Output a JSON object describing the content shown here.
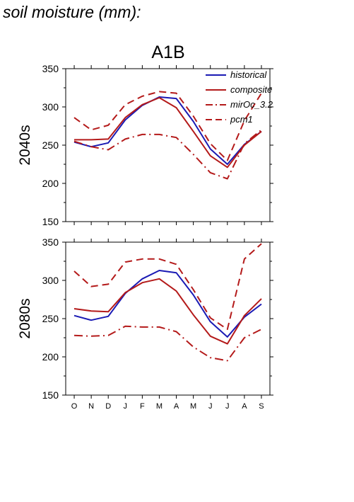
{
  "figure_title": "soil moisture (mm):",
  "chart_title": "A1B",
  "legend_entries": [
    "historical",
    "composite",
    "mirOc_3.2",
    "pcm1"
  ],
  "chart_data": [
    {
      "type": "line",
      "panel_label": "2040s",
      "categories": [
        "O",
        "N",
        "D",
        "J",
        "F",
        "M",
        "A",
        "M",
        "J",
        "J",
        "A",
        "S"
      ],
      "ylim": [
        150,
        350
      ],
      "yticks": [
        150,
        200,
        250,
        300,
        350
      ],
      "grid": false,
      "legend_placement": "top-right",
      "series": [
        {
          "name": "historical",
          "color": "#1a1ab4",
          "dash": "solid",
          "values": [
            254,
            248,
            253,
            283,
            302,
            313,
            311,
            281,
            245,
            225,
            251,
            268
          ]
        },
        {
          "name": "composite",
          "color": "#b41a1a",
          "dash": "solid",
          "values": [
            257,
            257,
            258,
            286,
            303,
            312,
            299,
            268,
            236,
            221,
            250,
            268
          ]
        },
        {
          "name": "mirOc_3.2",
          "color": "#b41a1a",
          "dash": "dashdot",
          "values": [
            255,
            248,
            244,
            258,
            264,
            264,
            260,
            238,
            214,
            206,
            252,
            270
          ]
        },
        {
          "name": "pcm1",
          "color": "#b41a1a",
          "dash": "dash",
          "values": [
            286,
            270,
            276,
            303,
            314,
            320,
            318,
            288,
            252,
            230,
            282,
            318
          ]
        }
      ]
    },
    {
      "type": "line",
      "panel_label": "2080s",
      "categories": [
        "O",
        "N",
        "D",
        "J",
        "F",
        "M",
        "A",
        "M",
        "J",
        "J",
        "A",
        "S"
      ],
      "ylim": [
        150,
        350
      ],
      "yticks": [
        150,
        200,
        250,
        300,
        350
      ],
      "grid": false,
      "series": [
        {
          "name": "historical",
          "color": "#1a1ab4",
          "dash": "solid",
          "values": [
            254,
            248,
            253,
            283,
            302,
            313,
            310,
            281,
            246,
            226,
            252,
            269
          ]
        },
        {
          "name": "composite",
          "color": "#b41a1a",
          "dash": "solid",
          "values": [
            263,
            260,
            259,
            284,
            297,
            302,
            286,
            255,
            227,
            217,
            254,
            276
          ]
        },
        {
          "name": "mirOc_3.2",
          "color": "#b41a1a",
          "dash": "dashdot",
          "values": [
            228,
            227,
            228,
            240,
            239,
            239,
            233,
            213,
            199,
            195,
            225,
            236
          ]
        },
        {
          "name": "pcm1",
          "color": "#b41a1a",
          "dash": "dash",
          "values": [
            312,
            292,
            295,
            324,
            328,
            328,
            321,
            288,
            251,
            236,
            328,
            348
          ]
        }
      ]
    }
  ]
}
